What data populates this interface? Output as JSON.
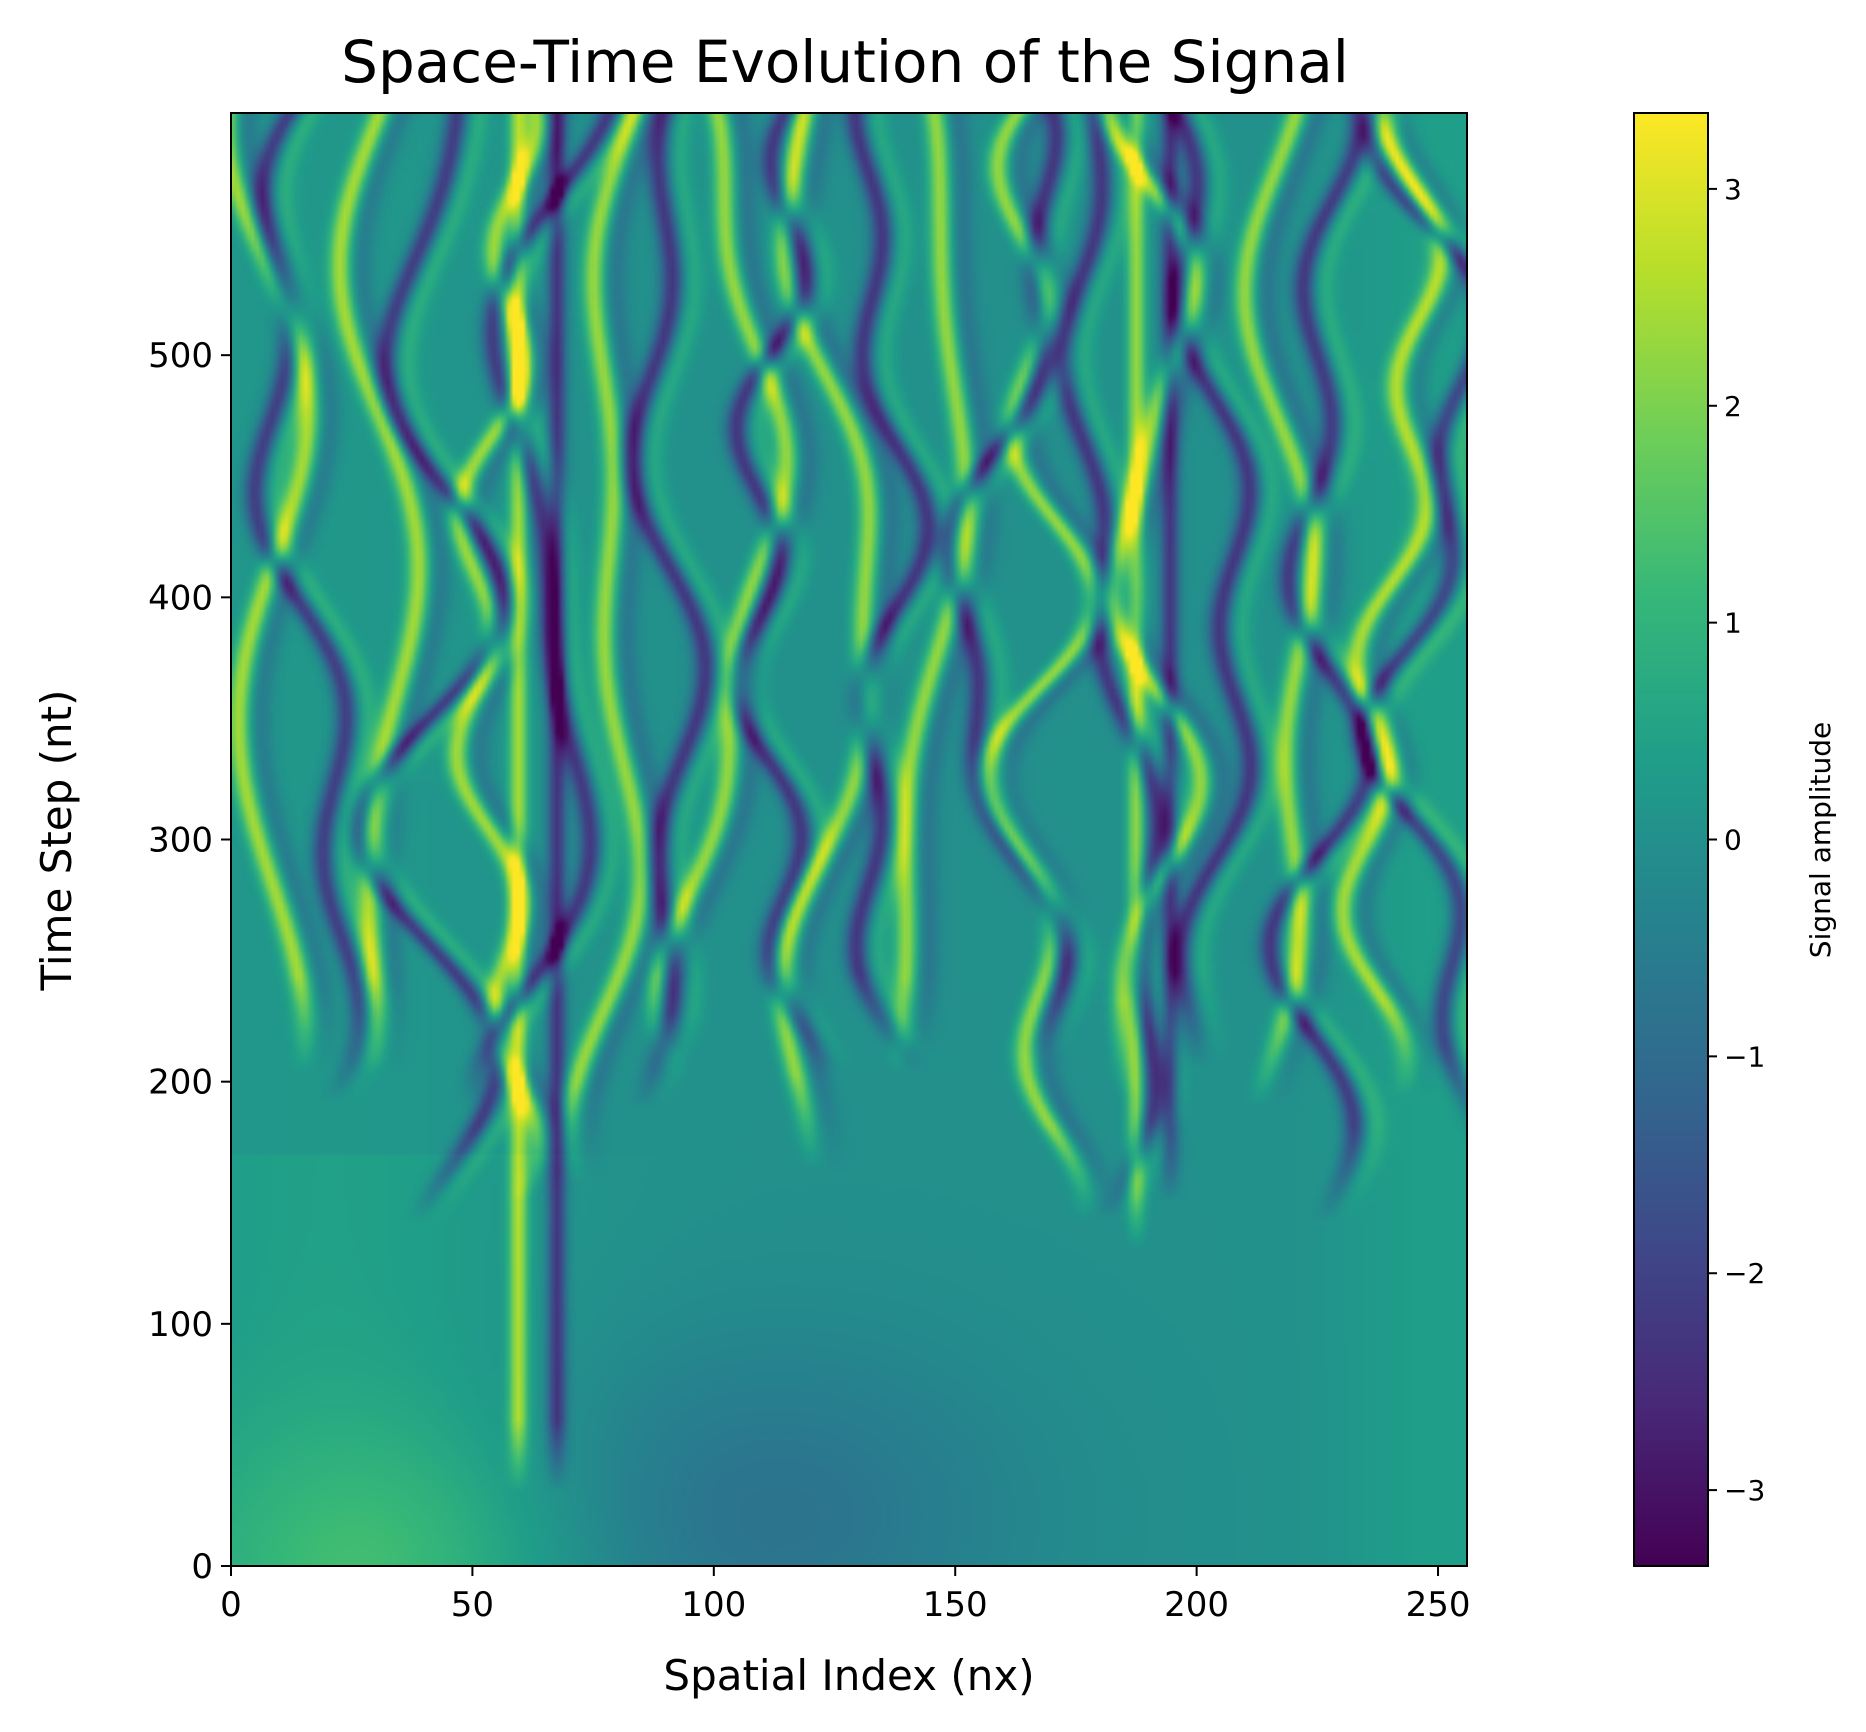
{
  "chart_data": {
    "type": "heatmap",
    "title": "Space-Time Evolution of the Signal",
    "xlabel": "Spatial Index (nx)",
    "ylabel": "Time Step (nt)",
    "xlim": [
      0,
      256
    ],
    "ylim": [
      0,
      600
    ],
    "x_ticks": [
      0,
      50,
      100,
      150,
      200,
      250
    ],
    "y_ticks": [
      0,
      100,
      200,
      300,
      400,
      500
    ],
    "colormap": "viridis",
    "colorbar": {
      "label": "Signal amplitude",
      "range": [
        -3.35,
        3.35
      ],
      "ticks": [
        -3,
        -2,
        -1,
        0,
        1,
        2,
        3
      ],
      "tick_labels": [
        "−3",
        "−2",
        "−1",
        "0",
        "1",
        "2",
        "3"
      ]
    },
    "features": {
      "vertical_ridges": [
        {
          "x": 59,
          "t_start": 30,
          "t_end": 600,
          "amplitude": 2.4
        },
        {
          "x": 67,
          "t_start": 30,
          "t_end": 600,
          "amplitude": -2.4
        },
        {
          "x": 187,
          "t_start": 130,
          "t_end": 600,
          "amplitude": 2.3
        },
        {
          "x": 194,
          "t_start": 150,
          "t_end": 600,
          "amplitude": -2.3
        }
      ],
      "wave_onset_time": 180
    }
  },
  "colors": {
    "viridis_stops": [
      "#440154",
      "#482878",
      "#3e4989",
      "#31688e",
      "#26828e",
      "#1f9e89",
      "#35b779",
      "#6ece58",
      "#b5de2b",
      "#fde725"
    ]
  }
}
